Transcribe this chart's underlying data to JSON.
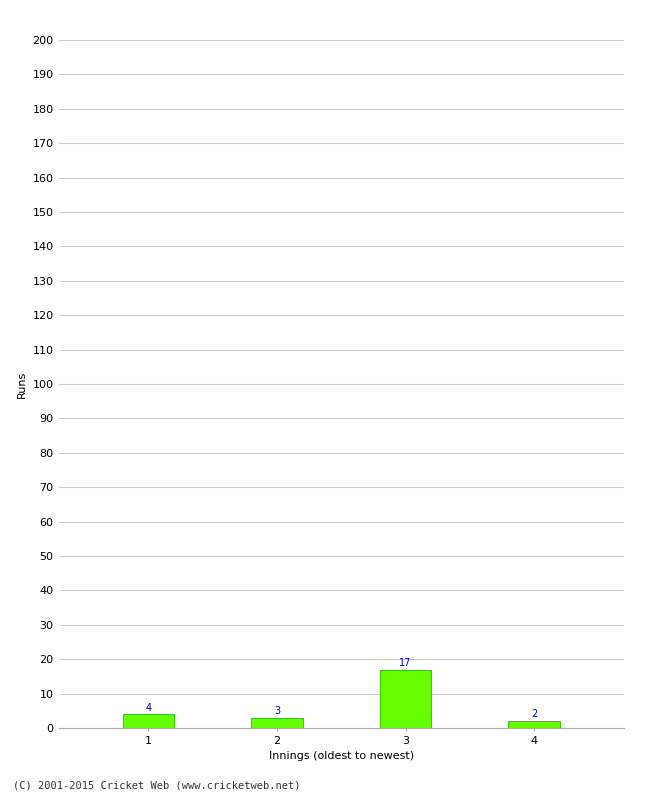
{
  "xlabel": "Innings (oldest to newest)",
  "ylabel": "Runs",
  "categories": [
    "1",
    "2",
    "3",
    "4"
  ],
  "values": [
    4,
    3,
    17,
    2
  ],
  "bar_color": "#66ff00",
  "bar_edge_color": "#33cc00",
  "label_color": "#0000cc",
  "ylim": [
    0,
    200
  ],
  "yticks": [
    0,
    10,
    20,
    30,
    40,
    50,
    60,
    70,
    80,
    90,
    100,
    110,
    120,
    130,
    140,
    150,
    160,
    170,
    180,
    190,
    200
  ],
  "background_color": "#ffffff",
  "grid_color": "#cccccc",
  "footer": "(C) 2001-2015 Cricket Web (www.cricketweb.net)",
  "label_fontsize": 7,
  "axis_fontsize": 8,
  "footer_fontsize": 7.5,
  "bar_width": 0.4
}
